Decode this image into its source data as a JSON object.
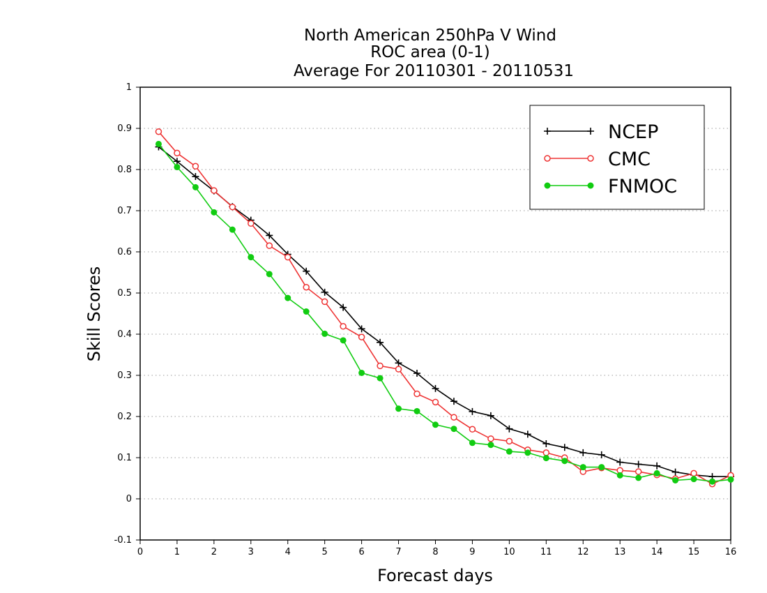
{
  "chart_data": {
    "type": "line",
    "title_lines": [
      "North American 250hPa V Wind",
      "ROC area (0-1)",
      "Average For 20110301 - 20110531"
    ],
    "xlabel": "Forecast days",
    "ylabel": "Skill Scores",
    "xlim": [
      0,
      16
    ],
    "ylim": [
      -0.1,
      1
    ],
    "x_ticks": [
      0,
      1,
      2,
      3,
      4,
      5,
      6,
      7,
      8,
      9,
      10,
      11,
      12,
      13,
      14,
      15,
      16
    ],
    "x_tick_labels": [
      "0",
      "1",
      "2",
      "3",
      "4",
      "5",
      "6",
      "7",
      "8",
      "9",
      "10",
      "11",
      "12",
      "13",
      "14",
      "15",
      "16"
    ],
    "y_ticks": [
      -0.1,
      0,
      0.1,
      0.2,
      0.3,
      0.4,
      0.5,
      0.6,
      0.7,
      0.8,
      0.9,
      1
    ],
    "y_tick_labels": [
      "-0.1",
      "0",
      "0.1",
      "0.2",
      "0.3",
      "0.4",
      "0.5",
      "0.6",
      "0.7",
      "0.8",
      "0.9",
      "1"
    ],
    "grid": true,
    "legend_position": "top-right",
    "x": [
      0.5,
      1,
      1.5,
      2,
      2.5,
      3,
      3.5,
      4,
      4.5,
      5,
      5.5,
      6,
      6.5,
      7,
      7.5,
      8,
      8.5,
      9,
      9.5,
      10,
      10.5,
      11,
      11.5,
      12,
      12.5,
      13,
      13.5,
      14,
      14.5,
      15,
      15.5,
      16
    ],
    "series": [
      {
        "name": "NCEP",
        "color": "#000000",
        "marker": "plus",
        "values": [
          0.855,
          0.82,
          0.783,
          0.748,
          0.71,
          0.677,
          0.64,
          0.594,
          0.553,
          0.502,
          0.465,
          0.413,
          0.38,
          0.33,
          0.305,
          0.268,
          0.237,
          0.212,
          0.202,
          0.17,
          0.157,
          0.134,
          0.125,
          0.112,
          0.107,
          0.089,
          0.084,
          0.08,
          0.065,
          0.058,
          0.054,
          0.054
        ]
      },
      {
        "name": "CMC",
        "color": "#ee3333",
        "marker": "open-circle",
        "values": [
          0.892,
          0.84,
          0.808,
          0.749,
          0.709,
          0.669,
          0.615,
          0.587,
          0.514,
          0.479,
          0.419,
          0.393,
          0.323,
          0.315,
          0.255,
          0.235,
          0.198,
          0.169,
          0.146,
          0.14,
          0.119,
          0.112,
          0.1,
          0.066,
          0.075,
          0.069,
          0.066,
          0.058,
          0.049,
          0.062,
          0.036,
          0.057
        ]
      },
      {
        "name": "FNMOC",
        "color": "#11cc11",
        "marker": "filled-circle",
        "values": [
          0.862,
          0.806,
          0.757,
          0.696,
          0.654,
          0.587,
          0.546,
          0.488,
          0.455,
          0.401,
          0.385,
          0.306,
          0.293,
          0.219,
          0.213,
          0.18,
          0.17,
          0.136,
          0.131,
          0.115,
          0.112,
          0.099,
          0.092,
          0.077,
          0.077,
          0.057,
          0.051,
          0.062,
          0.045,
          0.048,
          0.042,
          0.047
        ]
      }
    ]
  }
}
